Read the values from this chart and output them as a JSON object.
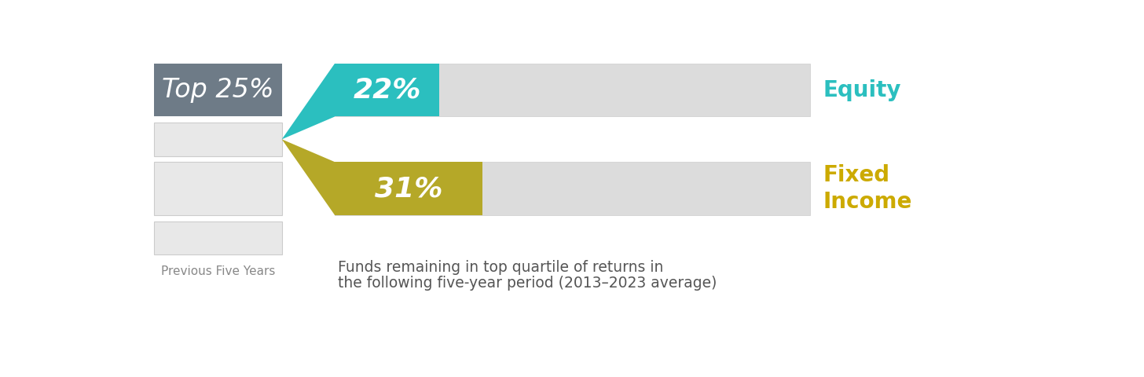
{
  "equity_pct": 22,
  "fixed_income_pct": 31,
  "equity_color": "#2bbfbf",
  "fixed_income_color": "#b5a828",
  "bar_bg_color": "#dcdcdc",
  "left_panel_top25_bg": "#6e7b87",
  "left_panel_text": "Top 25%",
  "left_panel_text_color": "#ffffff",
  "left_panel_other_bg": "#e8e8e8",
  "left_panel_border": "#cccccc",
  "equity_label": "Equity",
  "equity_label_color": "#2bbfbf",
  "fixed_label_line1": "Fixed",
  "fixed_label_line2": "Income",
  "fixed_label_color": "#ccaa00",
  "annotation_line1": "Funds remaining in top quartile of returns in",
  "annotation_line2": "the following five-year period (2013–2023 average)",
  "annotation_color": "#555555",
  "prev_label": "Previous Five Years",
  "prev_label_color": "#888888",
  "background_color": "#ffffff",
  "pct_label_color": "#ffffff"
}
